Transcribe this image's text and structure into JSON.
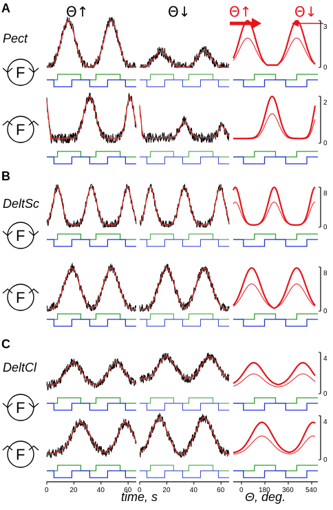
{
  "panels": [
    {
      "letter": "A",
      "muscle": "Pect"
    },
    {
      "letter": "B",
      "muscle": "DeltSc"
    },
    {
      "letter": "C",
      "muscle": "DeltCl"
    }
  ],
  "column_titles": {
    "col1": "Θ↑",
    "col2": "Θ↓",
    "col3_up": "Θ↑",
    "col3_down": "Θ↓"
  },
  "fly_glyph": "F",
  "x_axis": {
    "time_label": "time, s",
    "time_ticks": [
      "0",
      "20",
      "40",
      "60",
      "0",
      "20",
      "40",
      "60"
    ],
    "angle_label": "Θ, deg.",
    "angle_ticks": [
      "0",
      "180",
      "360",
      "540"
    ]
  },
  "rows": [
    {
      "ymax": "3",
      "ymid": "",
      "yzero": "0"
    },
    {
      "ymax": "2",
      "ymid": "",
      "yzero": "0"
    },
    {
      "ymax": "8",
      "ymid": "",
      "yzero": "0"
    },
    {
      "ymax": "8",
      "ymid": "",
      "yzero": "0"
    },
    {
      "ymax": "4",
      "ymid": "",
      "yzero": "0"
    },
    {
      "ymax": "4",
      "ymid": "",
      "yzero": "0"
    }
  ],
  "colors": {
    "raw_trace": "#000000",
    "smooth_trace": "#e0201a",
    "gray_trace": "#6a6a6a",
    "stim_green": "#2e9a2e",
    "stim_blue": "#1f2fd6",
    "avg_red": "#e8141b"
  }
}
